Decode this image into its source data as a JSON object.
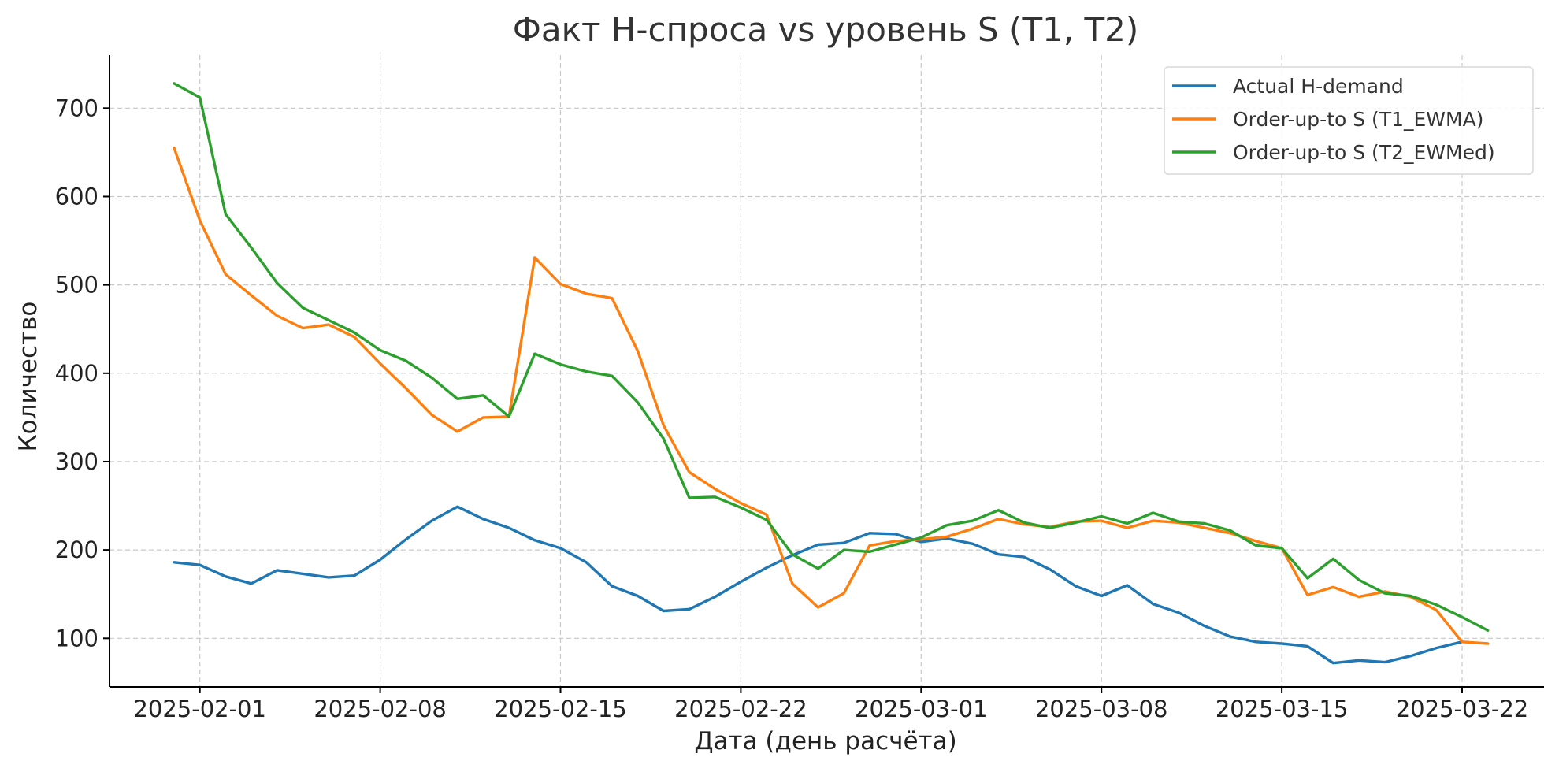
{
  "chart_data": {
    "type": "line",
    "title": "Факт H-спроса vs уровень S (T1, T2)",
    "xlabel": "Дата (день расчёта)",
    "ylabel": "Количество",
    "x": [
      "2025-01-31",
      "2025-02-01",
      "2025-02-02",
      "2025-02-03",
      "2025-02-04",
      "2025-02-05",
      "2025-02-06",
      "2025-02-07",
      "2025-02-08",
      "2025-02-09",
      "2025-02-10",
      "2025-02-11",
      "2025-02-12",
      "2025-02-13",
      "2025-02-14",
      "2025-02-15",
      "2025-02-16",
      "2025-02-17",
      "2025-02-18",
      "2025-02-19",
      "2025-02-20",
      "2025-02-21",
      "2025-02-22",
      "2025-02-23",
      "2025-02-24",
      "2025-02-25",
      "2025-02-26",
      "2025-02-27",
      "2025-02-28",
      "2025-03-01",
      "2025-03-02",
      "2025-03-03",
      "2025-03-04",
      "2025-03-05",
      "2025-03-06",
      "2025-03-07",
      "2025-03-08",
      "2025-03-09",
      "2025-03-10",
      "2025-03-11",
      "2025-03-12",
      "2025-03-13",
      "2025-03-14",
      "2025-03-15",
      "2025-03-16",
      "2025-03-17",
      "2025-03-18",
      "2025-03-19",
      "2025-03-20",
      "2025-03-21",
      "2025-03-22",
      "2025-03-23"
    ],
    "x_ticks": [
      "2025-02-01",
      "2025-02-08",
      "2025-02-15",
      "2025-02-22",
      "2025-03-01",
      "2025-03-08",
      "2025-03-15",
      "2025-03-22"
    ],
    "ylim": [
      45,
      760
    ],
    "y_ticks": [
      100,
      200,
      300,
      400,
      500,
      600,
      700
    ],
    "grid": true,
    "legend_position": "top-right",
    "series": [
      {
        "name": "Actual H-demand",
        "color": "#1f77b4",
        "values": [
          186,
          183,
          170,
          162,
          177,
          173,
          169,
          171,
          189,
          212,
          233,
          249,
          235,
          225,
          211,
          202,
          186,
          159,
          148,
          131,
          133,
          147,
          164,
          180,
          194,
          206,
          208,
          219,
          218,
          209,
          213,
          207,
          195,
          192,
          178,
          159,
          148,
          160,
          139,
          129,
          114,
          102,
          96,
          94,
          91,
          72,
          75,
          73,
          80,
          89,
          96,
          null
        ]
      },
      {
        "name": "Order-up-to S (T1_EWMA)",
        "color": "#ff7f0e",
        "values": [
          655,
          573,
          512,
          488,
          465,
          451,
          455,
          441,
          411,
          383,
          353,
          334,
          350,
          351,
          531,
          501,
          490,
          485,
          425,
          341,
          288,
          269,
          253,
          240,
          162,
          135,
          151,
          205,
          210,
          212,
          215,
          224,
          235,
          229,
          226,
          232,
          233,
          225,
          233,
          231,
          225,
          219,
          210,
          202,
          149,
          158,
          147,
          153,
          147,
          132,
          96,
          94
        ]
      },
      {
        "name": "Order-up-to S (T2_EWMed)",
        "color": "#2ca02c",
        "values": [
          728,
          712,
          580,
          542,
          502,
          474,
          460,
          446,
          426,
          414,
          395,
          371,
          375,
          351,
          422,
          410,
          402,
          397,
          367,
          326,
          259,
          260,
          248,
          234,
          195,
          179,
          200,
          198,
          206,
          214,
          228,
          233,
          245,
          231,
          225,
          231,
          238,
          230,
          242,
          232,
          230,
          222,
          205,
          202,
          168,
          190,
          166,
          151,
          148,
          138,
          124,
          109
        ]
      }
    ]
  }
}
